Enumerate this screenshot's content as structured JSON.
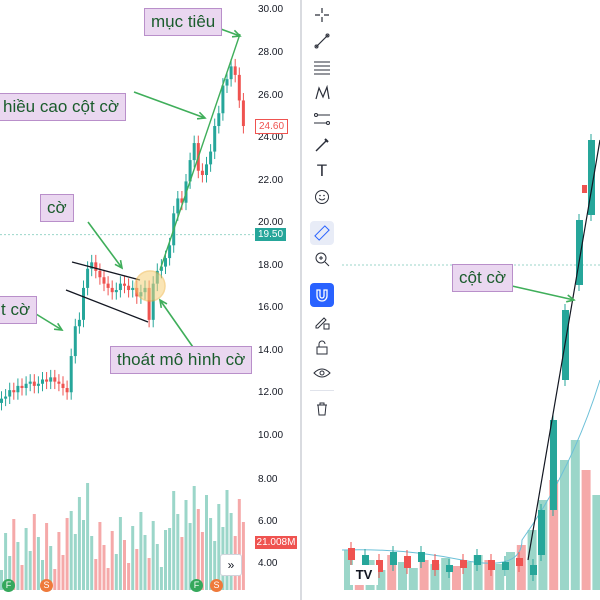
{
  "left_chart": {
    "price_axis": [
      "30.00",
      "28.00",
      "26.00",
      "24.00",
      "22.00",
      "20.00",
      "18.00",
      "16.00",
      "14.00",
      "12.00",
      "10.00",
      "8.00",
      "6.00",
      "4.00"
    ],
    "last_price": "24.60",
    "level_price": "19.50",
    "volume": "21.008M",
    "callouts": {
      "target": "mục tiêu",
      "pole_height": "hiều cao cột cờ",
      "flag": "cờ",
      "pole_partial": "t cờ",
      "breakout": "thoát mô hình cờ"
    },
    "badges": [
      "F",
      "S",
      "F",
      "S"
    ],
    "collapse_icon": "double-chevron-right"
  },
  "right_chart": {
    "callout": "cột cờ",
    "logo": "TV"
  },
  "colors": {
    "up": "#26a69a",
    "down": "#ef5350",
    "up_volume": "#9bd6c9",
    "down_volume": "#f5a9a9",
    "callout_bg": "#ead7f0",
    "arrow": "#3fae5a",
    "tool_active": "#2962ff"
  },
  "toolbar": {
    "tools": [
      "crosshair-icon",
      "trend-line-icon",
      "fib-icon",
      "pattern-icon",
      "prediction-icon",
      "brush-icon",
      "text-icon",
      "emoji-icon",
      "ruler-icon",
      "zoom-in-icon",
      "magnet-icon",
      "lock-edit-icon",
      "lock-icon",
      "eye-icon",
      "trash-icon"
    ]
  }
}
